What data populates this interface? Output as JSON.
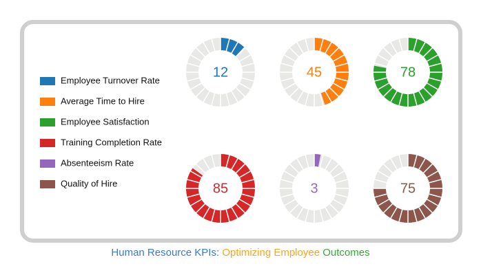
{
  "chart_data": {
    "type": "gauge",
    "title": [
      {
        "text": "Human Resource KPIs:",
        "color": "#3a7bc8"
      },
      {
        "text": "Optimizing Employee",
        "color": "#f5a623"
      },
      {
        "text": "Outcomes",
        "color": "#3aa53a"
      }
    ],
    "categories": [
      "Employee Turnover Rate",
      "Average Time to Hire",
      "Employee Satisfaction",
      "Training Completion Rate",
      "Absenteeism Rate",
      "Quality of Hire"
    ],
    "values": [
      12,
      45,
      78,
      85,
      3,
      75
    ],
    "colors": [
      "#1f77b4",
      "#ff7f0e",
      "#2ca02c",
      "#d62728",
      "#9467bd",
      "#8c564b"
    ],
    "ylim": [
      0,
      100
    ]
  }
}
